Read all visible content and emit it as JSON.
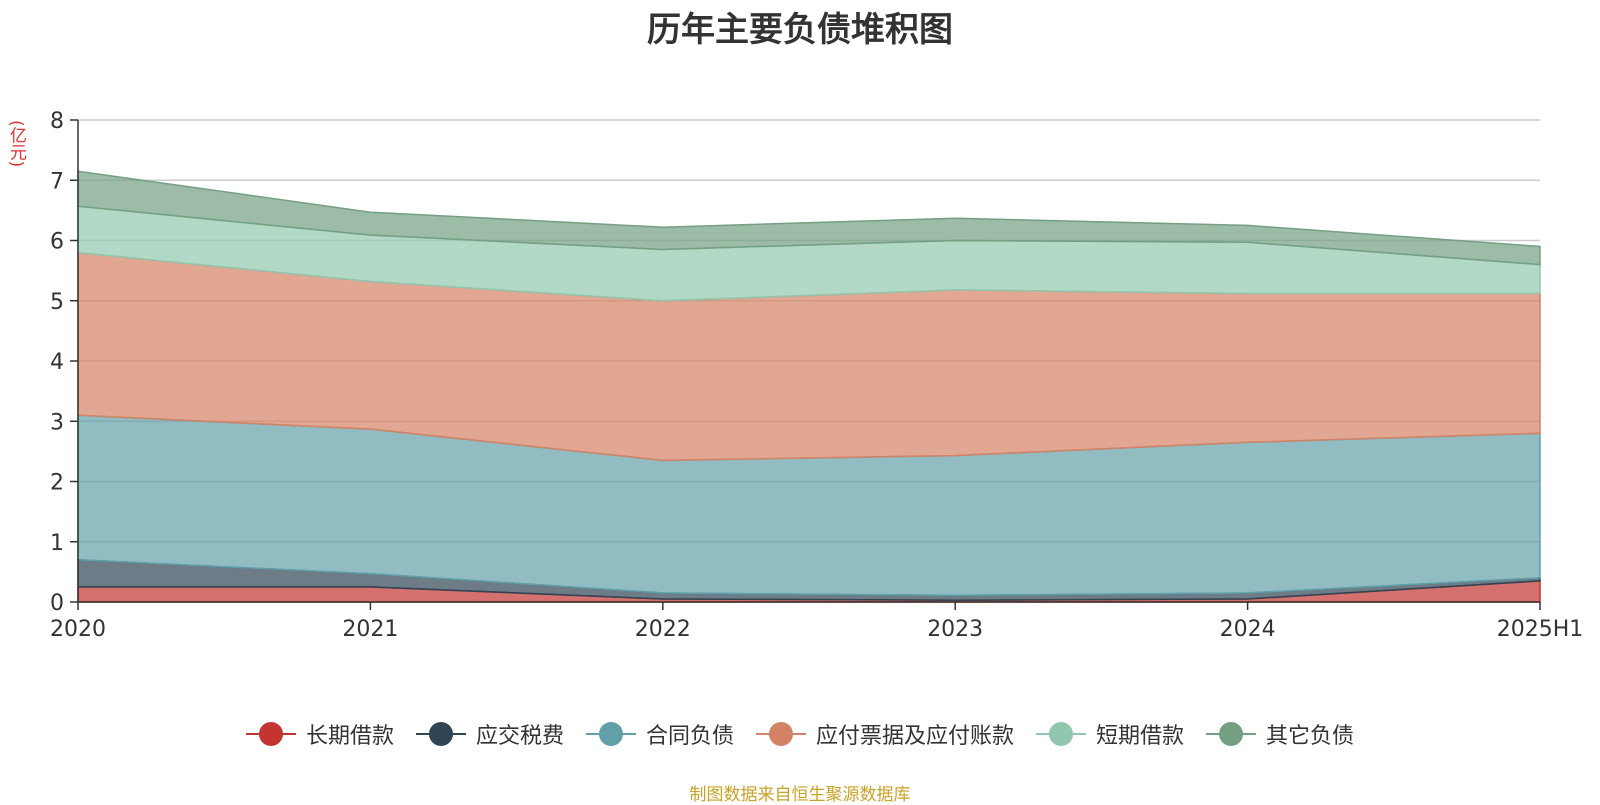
{
  "chart_data": {
    "type": "area",
    "stacked": true,
    "title": "历年主要负债堆积图",
    "ylabel": "(亿元)",
    "x": [
      "2020",
      "2021",
      "2022",
      "2023",
      "2024",
      "2025H1"
    ],
    "ylim": [
      0,
      8
    ],
    "yticks": [
      0,
      1,
      2,
      3,
      4,
      5,
      6,
      7,
      8
    ],
    "grid": true,
    "legend_position": "bottom",
    "series": [
      {
        "name": "长期借款",
        "values": [
          0.25,
          0.25,
          0.05,
          0.03,
          0.05,
          0.35
        ],
        "color": "#c23531"
      },
      {
        "name": "应交税费",
        "values": [
          0.45,
          0.22,
          0.1,
          0.08,
          0.1,
          0.05
        ],
        "color": "#2f4554"
      },
      {
        "name": "合同负债",
        "values": [
          2.4,
          2.4,
          2.2,
          2.32,
          2.5,
          2.4
        ],
        "color": "#61a0a8"
      },
      {
        "name": "应付票据及应付账款",
        "values": [
          2.7,
          2.45,
          2.65,
          2.75,
          2.47,
          2.32
        ],
        "color": "#d48265"
      },
      {
        "name": "短期借款",
        "values": [
          0.77,
          0.77,
          0.85,
          0.82,
          0.85,
          0.48
        ],
        "color": "#91c7ae"
      },
      {
        "name": "其它负债",
        "values": [
          0.58,
          0.38,
          0.37,
          0.37,
          0.28,
          0.3
        ],
        "color": "#749f83"
      }
    ]
  },
  "source_note": "制图数据来自恒生聚源数据库"
}
